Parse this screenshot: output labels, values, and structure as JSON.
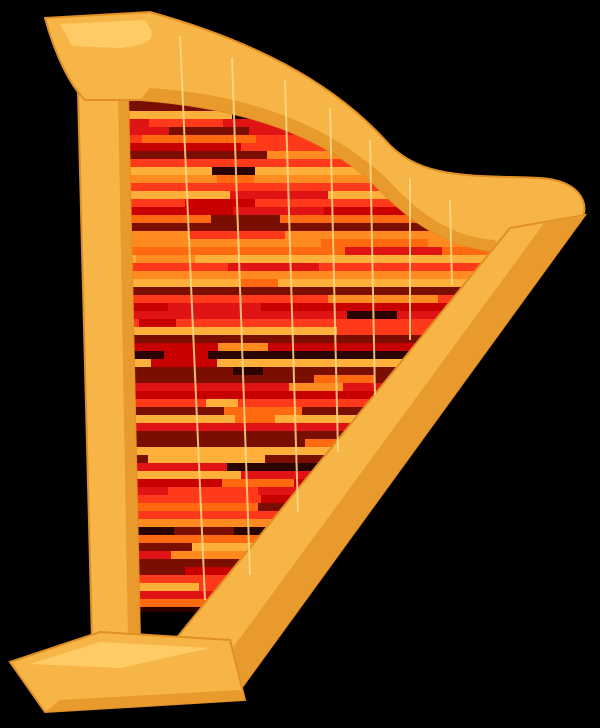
{
  "illustration": {
    "subject": "harp-icon",
    "colors": {
      "background": "#000000",
      "frame_main": "#F7B547",
      "frame_shadow": "#E89A2C",
      "frame_highlight": "#FFCB66",
      "frame_outline": "#E08F25",
      "string": "#FFD98A",
      "stripe_palette": [
        "#C80000",
        "#FF3A1A",
        "#FF8A1F",
        "#7A0E00",
        "#FFB03A",
        "#E01414",
        "#2A0300",
        "#FF6A10"
      ]
    },
    "string_count": 7
  }
}
